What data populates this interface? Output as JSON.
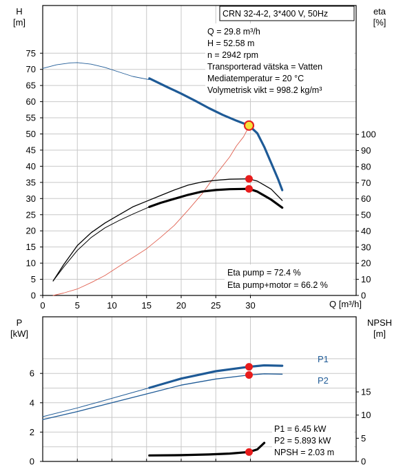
{
  "info": {
    "title": "CRN 32-4-2, 3*400 V, 50Hz",
    "lines": [
      "Q = 29.8 m³/h",
      "H = 52.58 m",
      "n = 2942 rpm",
      "Transporterad vätska = Vatten",
      "Mediatemperatur = 20 °C",
      "Volymetrisk vikt = 998.2 kg/m³"
    ],
    "eta_lines": [
      "Eta pump = 72.4 %",
      "Eta pump+motor = 66.2 %"
    ],
    "p_lines": [
      "P1 = 6.45 kW",
      "P2 = 5.893 kW",
      "NPSH = 2.03 m"
    ]
  },
  "chart_data": [
    {
      "type": "line",
      "axes": {
        "x": {
          "label": "Q [m³/h]",
          "range": [
            0,
            33
          ],
          "ticks": [
            0,
            5,
            10,
            15,
            20,
            25,
            30
          ]
        },
        "y_left": {
          "label": "H",
          "unit": "[m]",
          "range": [
            0,
            80
          ],
          "ticks": [
            0,
            5,
            10,
            15,
            20,
            25,
            30,
            35,
            40,
            45,
            50,
            55,
            60,
            65,
            70,
            75
          ]
        },
        "y_right": {
          "label": "eta",
          "unit": "[%]",
          "range": [
            0,
            160
          ],
          "ticks": [
            0,
            10,
            20,
            30,
            40,
            50,
            60,
            70,
            80,
            90,
            100
          ]
        }
      },
      "grid": true,
      "series": [
        {
          "axis": "left",
          "color": "#1e5a96",
          "style": "thin",
          "points": [
            [
              0,
              70.3
            ],
            [
              2,
              71.4
            ],
            [
              4,
              72
            ],
            [
              5,
              72.1
            ],
            [
              7,
              71.6
            ],
            [
              9,
              70.6
            ],
            [
              11,
              69.2
            ],
            [
              13,
              67.8
            ],
            [
              15.4,
              66.8
            ]
          ]
        },
        {
          "axis": "left",
          "color": "#1e5a96",
          "style": "thick",
          "points": [
            [
              15.4,
              67.2
            ],
            [
              18,
              64.5
            ],
            [
              20,
              62.5
            ],
            [
              22,
              60.3
            ],
            [
              24,
              58
            ],
            [
              26,
              55.9
            ],
            [
              28,
              54.1
            ],
            [
              29.8,
              52.6
            ],
            [
              31,
              50.2
            ],
            [
              32,
              46
            ],
            [
              33,
              41
            ],
            [
              34,
              36
            ],
            [
              34.6,
              32.6
            ]
          ]
        },
        {
          "axis": "right",
          "color": "#e06050",
          "style": "thin",
          "points": [
            [
              1.5,
              0
            ],
            [
              3,
              1.5
            ],
            [
              5,
              4
            ],
            [
              7,
              8
            ],
            [
              9,
              12.4
            ],
            [
              11,
              18
            ],
            [
              13,
              23.5
            ],
            [
              15,
              29
            ],
            [
              17,
              36
            ],
            [
              19,
              43.5
            ],
            [
              21,
              53
            ],
            [
              23,
              63
            ],
            [
              25,
              75
            ],
            [
              27,
              86
            ],
            [
              28,
              93
            ],
            [
              29,
              98.5
            ],
            [
              29.8,
              105
            ]
          ]
        },
        {
          "axis": "right",
          "color": "#000000",
          "style": "thin",
          "name": "Eta pump",
          "points": [
            [
              1.5,
              9
            ],
            [
              3,
              19
            ],
            [
              5,
              31
            ],
            [
              7,
              39
            ],
            [
              9,
              45
            ],
            [
              11,
              50
            ],
            [
              13,
              55
            ],
            [
              15,
              58.5
            ],
            [
              17,
              62
            ],
            [
              19,
              65.5
            ],
            [
              21,
              68.5
            ],
            [
              23,
              70.5
            ],
            [
              25,
              71.5
            ],
            [
              27,
              72.2
            ],
            [
              29.8,
              72.4
            ],
            [
              31,
              71
            ],
            [
              33,
              66
            ],
            [
              34.6,
              59
            ]
          ]
        },
        {
          "axis": "right",
          "color": "#000000",
          "style": "thick-part",
          "name": "Eta pump+motor",
          "points": [
            [
              1.5,
              9
            ],
            [
              3,
              17.5
            ],
            [
              5,
              28
            ],
            [
              7,
              36
            ],
            [
              9,
              42
            ],
            [
              11,
              46.5
            ],
            [
              13,
              50.5
            ],
            [
              15.4,
              55
            ],
            [
              17,
              57.5
            ],
            [
              19,
              60
            ],
            [
              21,
              62.5
            ],
            [
              23,
              64.5
            ],
            [
              25,
              65.5
            ],
            [
              27,
              66
            ],
            [
              29.8,
              66.2
            ],
            [
              31,
              64.5
            ],
            [
              33,
              59.5
            ],
            [
              34.6,
              54.5
            ]
          ]
        }
      ],
      "markers": [
        {
          "axis": "left",
          "x": 29.8,
          "y": 52.6,
          "type": "operating-point"
        },
        {
          "axis": "right",
          "x": 29.8,
          "y": 72.4
        },
        {
          "axis": "right",
          "x": 29.8,
          "y": 66.2
        }
      ]
    },
    {
      "type": "line",
      "axes": {
        "x": {
          "range": [
            0,
            33
          ]
        },
        "y_left": {
          "label": "P",
          "unit": "[kW]",
          "range": [
            0,
            8
          ],
          "ticks": [
            0,
            2,
            4,
            6
          ]
        },
        "y_right": {
          "label": "NPSH",
          "unit": "[m]",
          "range": [
            0,
            20
          ],
          "ticks": [
            0,
            5,
            10,
            15
          ]
        }
      },
      "grid": true,
      "series": [
        {
          "name": "P1",
          "axis": "left",
          "color": "#1e5a96",
          "points": [
            [
              0,
              3.05
            ],
            [
              5,
              3.65
            ],
            [
              10,
              4.3
            ],
            [
              15.4,
              5.02
            ],
            [
              20,
              5.65
            ],
            [
              25,
              6.15
            ],
            [
              29.8,
              6.45
            ],
            [
              32,
              6.55
            ],
            [
              34.6,
              6.52
            ]
          ]
        },
        {
          "name": "P2",
          "axis": "left",
          "color": "#1e5a96",
          "points": [
            [
              0,
              2.85
            ],
            [
              5,
              3.4
            ],
            [
              10,
              4
            ],
            [
              15.4,
              4.65
            ],
            [
              20,
              5.2
            ],
            [
              25,
              5.62
            ],
            [
              29.8,
              5.89
            ],
            [
              32,
              5.97
            ],
            [
              34.6,
              5.95
            ]
          ]
        },
        {
          "name": "NPSH",
          "axis": "right",
          "color": "#000000",
          "points": [
            [
              15.4,
              1.3
            ],
            [
              20,
              1.35
            ],
            [
              24,
              1.5
            ],
            [
              27,
              1.7
            ],
            [
              29.8,
              2.03
            ],
            [
              31,
              2.6
            ],
            [
              32,
              4
            ]
          ]
        }
      ],
      "markers": [
        {
          "axis": "left",
          "x": 29.8,
          "y": 6.45
        },
        {
          "axis": "left",
          "x": 29.8,
          "y": 5.89
        },
        {
          "axis": "right",
          "x": 29.8,
          "y": 2.03
        }
      ],
      "labels": [
        "P1",
        "P2"
      ]
    }
  ]
}
